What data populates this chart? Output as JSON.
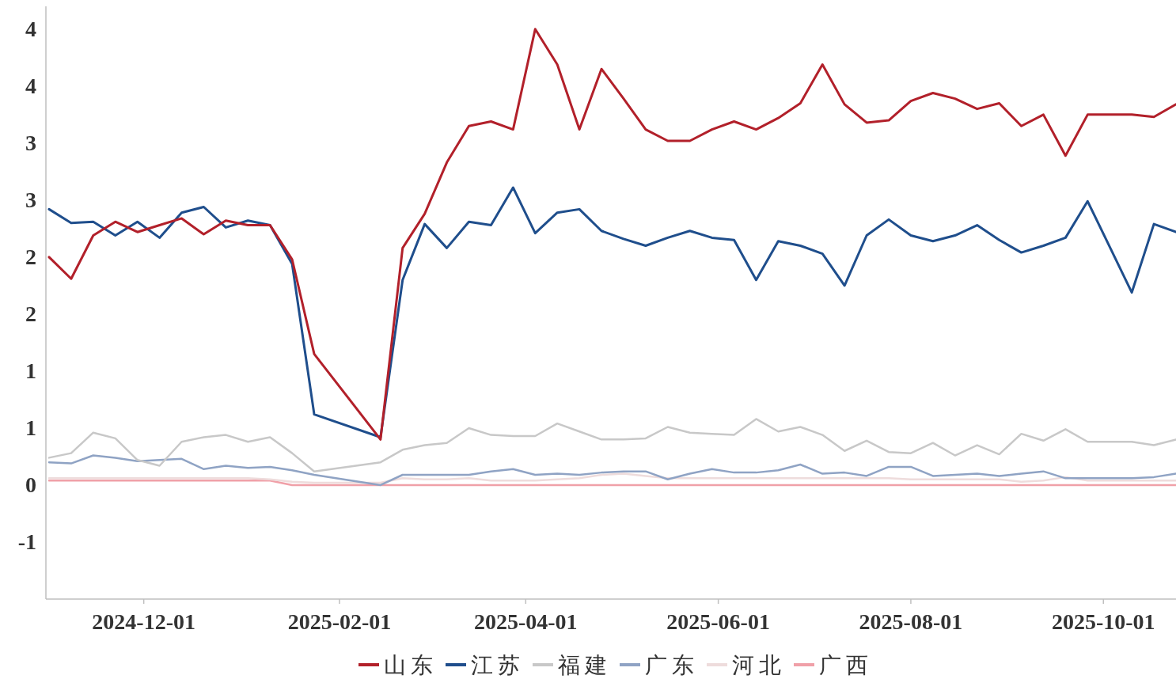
{
  "chart_data": {
    "type": "line",
    "x": [
      "2024-11-01",
      "2024-11-08",
      "2024-11-15",
      "2024-11-22",
      "2024-11-29",
      "2024-12-06",
      "2024-12-13",
      "2024-12-20",
      "2024-12-27",
      "2025-01-03",
      "2025-01-10",
      "2025-01-17",
      "2025-01-24",
      "2025-02-14",
      "2025-02-21",
      "2025-02-28",
      "2025-03-07",
      "2025-03-14",
      "2025-03-21",
      "2025-03-28",
      "2025-04-04",
      "2025-04-11",
      "2025-04-18",
      "2025-04-25",
      "2025-05-02",
      "2025-05-09",
      "2025-05-16",
      "2025-05-23",
      "2025-05-30",
      "2025-06-06",
      "2025-06-13",
      "2025-06-20",
      "2025-06-27",
      "2025-07-04",
      "2025-07-11",
      "2025-07-18",
      "2025-07-25",
      "2025-08-01",
      "2025-08-08",
      "2025-08-15",
      "2025-08-22",
      "2025-08-29",
      "2025-09-05",
      "2025-09-12",
      "2025-09-19",
      "2025-09-26",
      "2025-10-03",
      "2025-10-10",
      "2025-10-17",
      "2025-10-24"
    ],
    "series": [
      {
        "name": "山东",
        "color": "#b2202a",
        "values": [
          2.0,
          1.81,
          2.19,
          2.31,
          2.22,
          2.28,
          2.34,
          2.2,
          2.32,
          2.28,
          2.28,
          1.98,
          1.15,
          0.4,
          2.08,
          2.38,
          2.83,
          3.15,
          3.19,
          3.12,
          4.0,
          3.69,
          3.12,
          3.65,
          3.39,
          3.12,
          3.02,
          3.02,
          3.12,
          3.19,
          3.12,
          3.22,
          3.35,
          3.69,
          3.34,
          3.18,
          3.2,
          3.37,
          3.44,
          3.39,
          3.3,
          3.35,
          3.15,
          3.25,
          2.89,
          3.25,
          3.25,
          3.25,
          3.23,
          3.34
        ]
      },
      {
        "name": "江苏",
        "color": "#1f4e8c",
        "values": [
          2.42,
          2.3,
          2.31,
          2.19,
          2.31,
          2.17,
          2.39,
          2.44,
          2.26,
          2.32,
          2.28,
          1.94,
          0.62,
          0.42,
          1.8,
          2.29,
          2.08,
          2.31,
          2.28,
          2.61,
          2.21,
          2.39,
          2.42,
          2.23,
          2.16,
          2.1,
          2.17,
          2.23,
          2.17,
          2.15,
          1.8,
          2.14,
          2.1,
          2.03,
          1.75,
          2.19,
          2.33,
          2.19,
          2.14,
          2.19,
          2.28,
          2.15,
          2.04,
          2.1,
          2.17,
          2.49,
          2.09,
          1.69,
          2.29,
          2.22
        ]
      },
      {
        "name": "福建",
        "color": "#c8c8c8",
        "values": [
          0.24,
          0.28,
          0.46,
          0.41,
          0.22,
          0.17,
          0.38,
          0.42,
          0.44,
          0.38,
          0.42,
          0.28,
          0.12,
          0.2,
          0.31,
          0.35,
          0.37,
          0.5,
          0.44,
          0.43,
          0.43,
          0.54,
          0.47,
          0.4,
          0.4,
          0.41,
          0.51,
          0.46,
          0.45,
          0.44,
          0.58,
          0.47,
          0.51,
          0.44,
          0.3,
          0.39,
          0.29,
          0.28,
          0.37,
          0.26,
          0.35,
          0.27,
          0.45,
          0.39,
          0.49,
          0.38,
          0.38,
          0.38,
          0.35,
          0.4
        ]
      },
      {
        "name": "广东",
        "color": "#8fa3c4",
        "values": [
          0.2,
          0.19,
          0.26,
          0.24,
          0.21,
          0.22,
          0.23,
          0.14,
          0.17,
          0.15,
          0.16,
          0.13,
          0.09,
          0.0,
          0.09,
          0.09,
          0.09,
          0.09,
          0.12,
          0.14,
          0.09,
          0.1,
          0.09,
          0.11,
          0.12,
          0.12,
          0.05,
          0.1,
          0.14,
          0.11,
          0.11,
          0.13,
          0.18,
          0.1,
          0.11,
          0.08,
          0.16,
          0.16,
          0.08,
          0.09,
          0.1,
          0.08,
          0.1,
          0.12,
          0.06,
          0.06,
          0.06,
          0.06,
          0.07,
          0.1
        ]
      },
      {
        "name": "河北",
        "color": "#eedcdc",
        "values": [
          0.06,
          0.06,
          0.06,
          0.06,
          0.06,
          0.06,
          0.06,
          0.06,
          0.06,
          0.06,
          0.05,
          0.03,
          0.02,
          0.02,
          0.06,
          0.05,
          0.05,
          0.06,
          0.04,
          0.04,
          0.04,
          0.05,
          0.06,
          0.09,
          0.1,
          0.08,
          0.06,
          0.06,
          0.06,
          0.06,
          0.06,
          0.06,
          0.06,
          0.06,
          0.06,
          0.06,
          0.06,
          0.05,
          0.05,
          0.05,
          0.05,
          0.05,
          0.03,
          0.04,
          0.07,
          0.04,
          0.04,
          0.04,
          0.04,
          0.04
        ]
      },
      {
        "name": "广西",
        "color": "#f0a0a8",
        "values": [
          0.04,
          0.04,
          0.04,
          0.04,
          0.04,
          0.04,
          0.04,
          0.04,
          0.04,
          0.04,
          0.04,
          0.0,
          0.0,
          0.0,
          0.0,
          0.0,
          0.0,
          0.0,
          0.0,
          0.0,
          0.0,
          0.0,
          0.0,
          0.0,
          0.0,
          0.0,
          0.0,
          0.0,
          0.0,
          0.0,
          0.0,
          0.0,
          0.0,
          0.0,
          0.0,
          0.0,
          0.0,
          0.0,
          0.0,
          0.0,
          0.0,
          0.0,
          0.0,
          0.0,
          0.0,
          0.0,
          0.0,
          0.0,
          0.0,
          0.0
        ]
      }
    ],
    "xlim": [
      "2024-10-31",
      "2025-10-24"
    ],
    "xticks": [
      "2024-12-01",
      "2025-02-01",
      "2025-04-01",
      "2025-06-01",
      "2025-08-01",
      "2025-10-01"
    ],
    "ylim": [
      -1,
      4.2
    ],
    "yticks": [
      {
        "value": 4,
        "label": "4"
      },
      {
        "value": 3.5,
        "label": "4"
      },
      {
        "value": 3,
        "label": "3"
      },
      {
        "value": 2.5,
        "label": "3"
      },
      {
        "value": 2,
        "label": "2"
      },
      {
        "value": 1.5,
        "label": "2"
      },
      {
        "value": 1,
        "label": "1"
      },
      {
        "value": 0.5,
        "label": "1"
      },
      {
        "value": 0,
        "label": "0"
      },
      {
        "value": -0.5,
        "label": "-1"
      }
    ],
    "legend": "bottom",
    "grid": false,
    "marker": "none",
    "line_style": "solid"
  }
}
